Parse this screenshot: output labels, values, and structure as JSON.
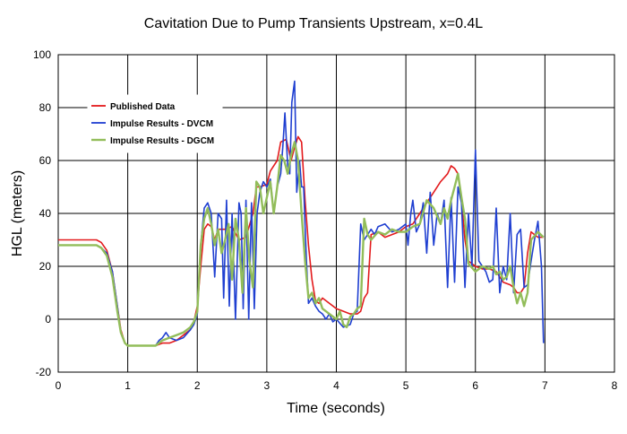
{
  "chart_data": {
    "type": "line",
    "title": "Cavitation Due to Pump Transients Upstream, x=0.4L",
    "xlabel": "Time (seconds)",
    "ylabel": "HGL (meters)",
    "xlim": [
      0,
      8
    ],
    "ylim": [
      -20,
      100
    ],
    "xticks": [
      0,
      1,
      2,
      3,
      4,
      5,
      6,
      7,
      8
    ],
    "yticks": [
      -20,
      0,
      20,
      40,
      60,
      80,
      100
    ],
    "grid": true,
    "legend_position": "top-left",
    "series": [
      {
        "name": "Published Data",
        "color": "#e31a1c",
        "x": [
          0,
          0.55,
          0.62,
          0.7,
          0.78,
          0.85,
          0.9,
          0.96,
          1.0,
          1.2,
          1.4,
          1.5,
          1.6,
          1.7,
          1.8,
          1.9,
          1.95,
          2.0,
          2.05,
          2.1,
          2.15,
          2.2,
          2.25,
          2.3,
          2.4,
          2.5,
          2.6,
          2.7,
          2.8,
          2.85,
          2.9,
          3.0,
          3.05,
          3.1,
          3.15,
          3.2,
          3.28,
          3.35,
          3.4,
          3.45,
          3.5,
          3.55,
          3.6,
          3.65,
          3.7,
          3.75,
          3.8,
          3.9,
          4.0,
          4.1,
          4.2,
          4.3,
          4.35,
          4.4,
          4.45,
          4.5,
          4.6,
          4.7,
          4.8,
          4.9,
          5.0,
          5.1,
          5.2,
          5.3,
          5.4,
          5.5,
          5.6,
          5.65,
          5.7,
          5.75,
          5.8,
          5.85,
          5.9,
          6.0,
          6.1,
          6.2,
          6.3,
          6.4,
          6.5,
          6.55,
          6.6,
          6.65,
          6.7,
          6.75,
          6.8,
          6.9,
          6.98
        ],
        "y": [
          30,
          30,
          29,
          26,
          18,
          5,
          -4,
          -9,
          -10,
          -10,
          -10,
          -9,
          -9,
          -8,
          -6,
          -4,
          -1,
          5,
          20,
          34,
          36,
          35,
          30,
          34,
          34,
          35,
          30,
          31,
          40,
          50,
          50,
          51,
          56,
          58,
          60,
          67,
          68,
          60,
          65,
          69,
          67,
          45,
          28,
          15,
          7,
          6,
          8,
          6,
          4,
          3,
          2,
          2,
          3,
          8,
          10,
          32,
          33,
          31,
          32,
          33,
          35,
          36,
          40,
          44,
          48,
          52,
          55,
          58,
          57,
          55,
          45,
          30,
          22,
          20,
          19,
          19,
          18,
          14,
          13,
          12,
          10,
          10,
          12,
          25,
          33,
          31,
          31
        ]
      },
      {
        "name": "Impulse Results - DVCM",
        "color": "#1f3fd1",
        "x": [
          0,
          0.55,
          0.62,
          0.7,
          0.78,
          0.85,
          0.9,
          0.96,
          1.0,
          1.2,
          1.4,
          1.45,
          1.5,
          1.55,
          1.6,
          1.7,
          1.8,
          1.9,
          1.95,
          2.0,
          2.05,
          2.1,
          2.15,
          2.2,
          2.25,
          2.3,
          2.35,
          2.38,
          2.42,
          2.46,
          2.5,
          2.55,
          2.6,
          2.63,
          2.66,
          2.7,
          2.74,
          2.78,
          2.82,
          2.86,
          2.9,
          2.95,
          3.0,
          3.05,
          3.1,
          3.15,
          3.2,
          3.23,
          3.26,
          3.3,
          3.33,
          3.36,
          3.4,
          3.43,
          3.47,
          3.5,
          3.53,
          3.57,
          3.6,
          3.65,
          3.7,
          3.75,
          3.8,
          3.85,
          3.9,
          3.95,
          4.0,
          4.1,
          4.2,
          4.25,
          4.3,
          4.35,
          4.4,
          4.45,
          4.5,
          4.55,
          4.6,
          4.7,
          4.8,
          4.9,
          5.0,
          5.03,
          5.07,
          5.1,
          5.15,
          5.2,
          5.25,
          5.3,
          5.35,
          5.4,
          5.45,
          5.5,
          5.55,
          5.6,
          5.65,
          5.7,
          5.75,
          5.8,
          5.85,
          5.9,
          5.95,
          6.0,
          6.05,
          6.1,
          6.15,
          6.2,
          6.25,
          6.3,
          6.35,
          6.4,
          6.45,
          6.5,
          6.55,
          6.6,
          6.65,
          6.7,
          6.75,
          6.8,
          6.85,
          6.9,
          6.95,
          6.98
        ],
        "y": [
          28,
          28,
          27,
          25,
          18,
          5,
          -5,
          -9,
          -10,
          -10,
          -10,
          -8,
          -7,
          -5,
          -7,
          -8,
          -7,
          -4,
          -2,
          2,
          28,
          42,
          44,
          40,
          16,
          40,
          38,
          8,
          45,
          5,
          40,
          0,
          44,
          40,
          4,
          45,
          0,
          44,
          4,
          40,
          48,
          52,
          50,
          53,
          40,
          50,
          55,
          65,
          78,
          58,
          55,
          82,
          90,
          48,
          60,
          50,
          50,
          22,
          6,
          8,
          5,
          3,
          2,
          0,
          2,
          -1,
          0,
          -3,
          -2,
          2,
          3,
          36,
          30,
          32,
          34,
          32,
          35,
          36,
          33,
          34,
          36,
          28,
          40,
          45,
          33,
          36,
          44,
          25,
          48,
          28,
          40,
          36,
          45,
          12,
          46,
          14,
          50,
          44,
          12,
          40,
          20,
          64,
          22,
          20,
          18,
          14,
          15,
          42,
          10,
          20,
          15,
          40,
          10,
          32,
          34,
          12,
          13,
          22,
          30,
          37,
          20,
          -9
        ]
      },
      {
        "name": "Impulse Results - DGCM",
        "color": "#92bd5a",
        "x": [
          0,
          0.55,
          0.62,
          0.7,
          0.78,
          0.85,
          0.9,
          0.96,
          1.0,
          1.2,
          1.4,
          1.5,
          1.6,
          1.7,
          1.8,
          1.9,
          1.95,
          2.0,
          2.05,
          2.1,
          2.15,
          2.2,
          2.25,
          2.3,
          2.35,
          2.4,
          2.45,
          2.5,
          2.55,
          2.6,
          2.65,
          2.7,
          2.75,
          2.8,
          2.85,
          2.9,
          2.95,
          3.0,
          3.05,
          3.1,
          3.15,
          3.2,
          3.25,
          3.3,
          3.35,
          3.4,
          3.45,
          3.5,
          3.55,
          3.6,
          3.65,
          3.7,
          3.75,
          3.8,
          3.9,
          4.0,
          4.05,
          4.1,
          4.15,
          4.2,
          4.25,
          4.3,
          4.35,
          4.4,
          4.45,
          4.5,
          4.6,
          4.7,
          4.8,
          4.9,
          5.0,
          5.1,
          5.2,
          5.3,
          5.4,
          5.5,
          5.55,
          5.6,
          5.65,
          5.7,
          5.75,
          5.8,
          5.85,
          5.9,
          6.0,
          6.1,
          6.2,
          6.25,
          6.3,
          6.35,
          6.4,
          6.45,
          6.5,
          6.55,
          6.6,
          6.65,
          6.7,
          6.75,
          6.8,
          6.9,
          6.98
        ],
        "y": [
          28,
          28,
          27,
          24,
          16,
          3,
          -5,
          -9,
          -10,
          -10,
          -10,
          -8,
          -7,
          -6,
          -5,
          -3,
          -1,
          3,
          28,
          38,
          42,
          36,
          28,
          34,
          25,
          30,
          36,
          15,
          38,
          30,
          10,
          42,
          22,
          12,
          52,
          50,
          40,
          46,
          52,
          40,
          50,
          62,
          60,
          55,
          62,
          67,
          60,
          40,
          22,
          8,
          10,
          6,
          8,
          4,
          2,
          0,
          3,
          -2,
          -3,
          1,
          2,
          4,
          5,
          38,
          32,
          30,
          33,
          32,
          34,
          33,
          33,
          35,
          36,
          45,
          42,
          36,
          42,
          38,
          45,
          50,
          55,
          46,
          38,
          21,
          18,
          20,
          19,
          20,
          17,
          18,
          15,
          16,
          20,
          12,
          6,
          10,
          5,
          10,
          30,
          33,
          31
        ]
      }
    ]
  }
}
